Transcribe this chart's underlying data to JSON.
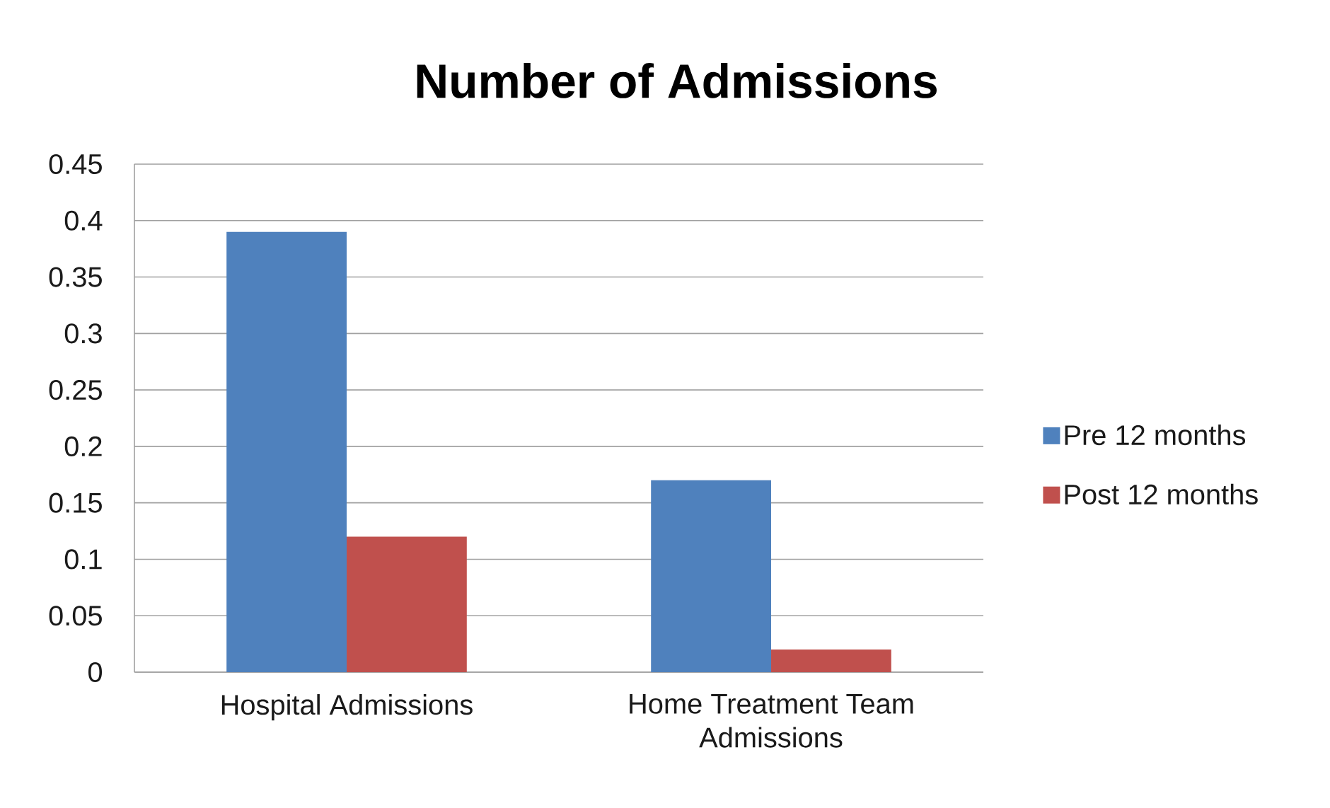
{
  "chart_data": {
    "type": "bar",
    "title": "Number of Admissions",
    "categories": [
      "Hospital Admissions",
      "Home Treatment Team Admissions"
    ],
    "series": [
      {
        "name": "Pre 12 months",
        "color": "#4f81bd",
        "values": [
          0.39,
          0.17
        ]
      },
      {
        "name": "Post 12 months",
        "color": "#c0504d",
        "values": [
          0.12,
          0.02
        ]
      }
    ],
    "ylim": [
      0,
      0.45
    ],
    "yticks": [
      0,
      0.05,
      0.1,
      0.15,
      0.2,
      0.25,
      0.3,
      0.35,
      0.4,
      0.45
    ],
    "grid": "y",
    "legend": "right"
  }
}
